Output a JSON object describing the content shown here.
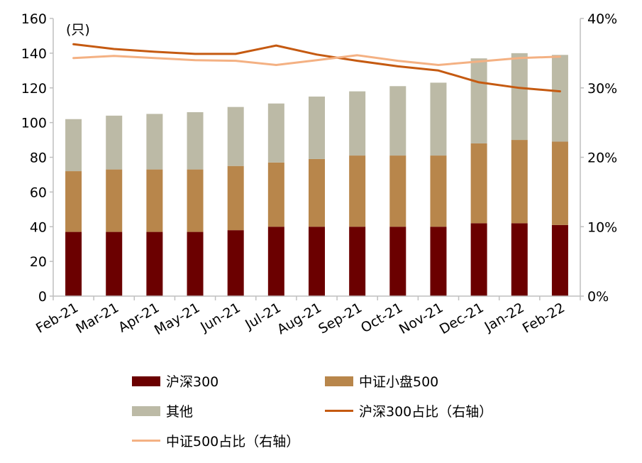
{
  "chart_data": {
    "type": "bar",
    "stacked": true,
    "categories": [
      "Feb-21",
      "Mar-21",
      "Apr-21",
      "May-21",
      "Jun-21",
      "Jul-21",
      "Aug-21",
      "Sep-21",
      "Oct-21",
      "Nov-21",
      "Dec-21",
      "Jan-22",
      "Feb-22"
    ],
    "left_axis": {
      "unit_label": "(只)",
      "ylim": [
        0,
        160
      ],
      "ticks": [
        0,
        20,
        40,
        60,
        80,
        100,
        120,
        140,
        160
      ]
    },
    "right_axis": {
      "ylim": [
        0,
        40
      ],
      "ticks": [
        "0%",
        "10%",
        "20%",
        "30%",
        "40%"
      ]
    },
    "series": [
      {
        "name": "沪深300",
        "kind": "bar",
        "axis": "left",
        "color": "#6b0000",
        "values": [
          37,
          37,
          37,
          37,
          38,
          40,
          40,
          40,
          40,
          40,
          42,
          42,
          41
        ]
      },
      {
        "name": "中证小盘500",
        "kind": "bar",
        "axis": "left",
        "color": "#b8864b",
        "values": [
          35,
          36,
          36,
          36,
          37,
          37,
          39,
          41,
          41,
          41,
          46,
          48,
          48
        ]
      },
      {
        "name": "其他",
        "kind": "bar",
        "axis": "left",
        "color": "#bcbaa6",
        "values": [
          30,
          31,
          32,
          33,
          34,
          34,
          36,
          37,
          40,
          42,
          49,
          50,
          50
        ]
      },
      {
        "name": "沪深300占比（右轴）",
        "kind": "line",
        "axis": "right",
        "color": "#c55a11",
        "values": [
          36.3,
          35.6,
          35.2,
          34.9,
          34.9,
          36.1,
          34.8,
          33.9,
          33.1,
          32.5,
          30.8,
          30.0,
          29.5
        ]
      },
      {
        "name": "中证500占比（右轴）",
        "kind": "line",
        "axis": "right",
        "color": "#f4b183",
        "values": [
          34.3,
          34.6,
          34.3,
          34.0,
          33.9,
          33.3,
          34.0,
          34.7,
          33.9,
          33.3,
          33.8,
          34.3,
          34.5
        ]
      }
    ],
    "legend_position": "bottom",
    "grid": false
  }
}
